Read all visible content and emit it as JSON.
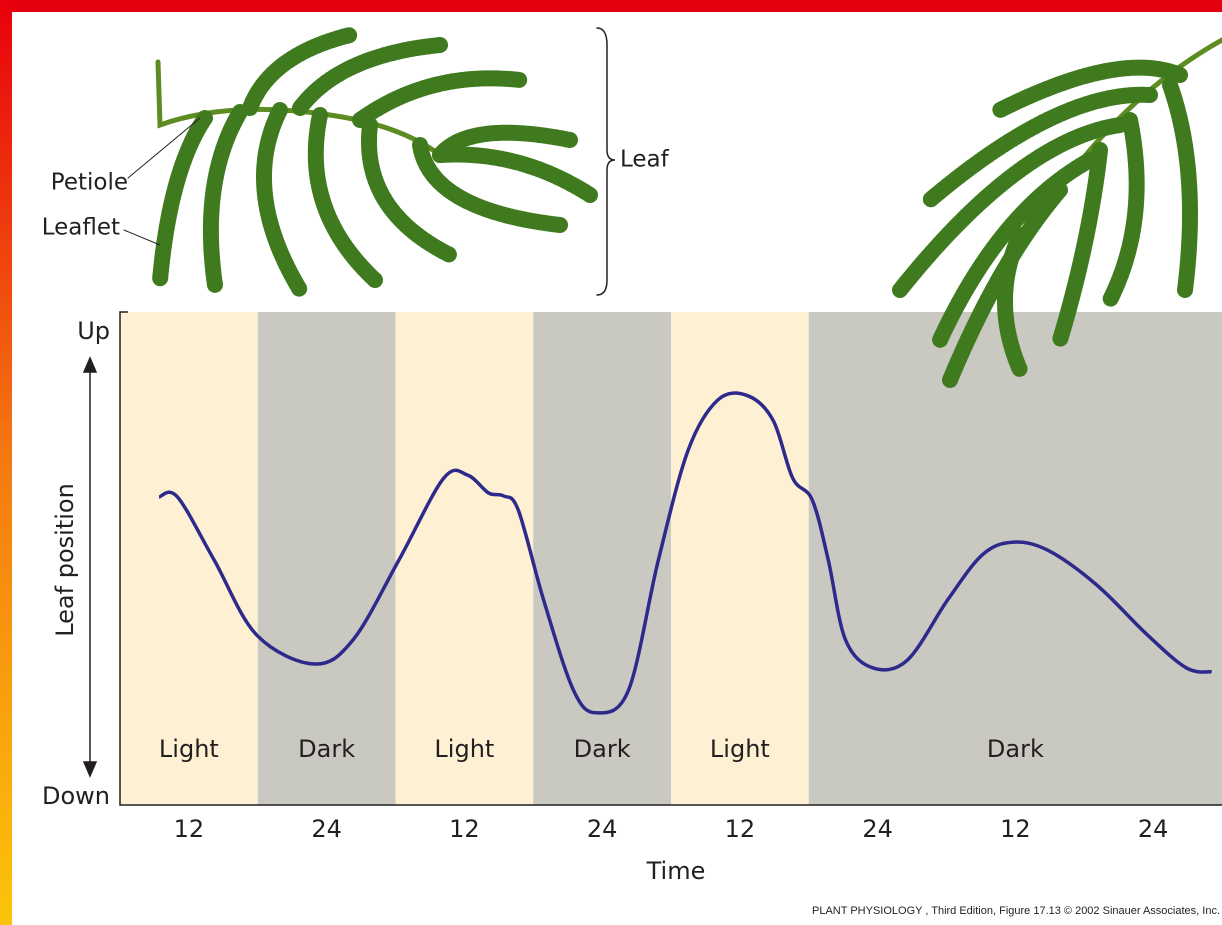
{
  "chart_data": {
    "type": "line",
    "y_label": "Leaf position",
    "x_label": "Time",
    "color": "#2e2a8c",
    "xlim": [
      6,
      102
    ],
    "xticks": [
      {
        "value": 12,
        "label": "12"
      },
      {
        "value": 24,
        "label": "24"
      },
      {
        "value": 36,
        "label": "12"
      },
      {
        "value": 48,
        "label": "24"
      },
      {
        "value": 60,
        "label": "12"
      },
      {
        "value": 72,
        "label": "24"
      },
      {
        "value": 84,
        "label": "12"
      },
      {
        "value": 96,
        "label": "24"
      }
    ],
    "ylim": [
      0,
      100
    ],
    "yticks": [
      {
        "value": 0,
        "label": "Down"
      },
      {
        "value": 100,
        "label": "Up"
      }
    ],
    "periods": [
      {
        "label": "Light",
        "start": 6,
        "end": 18,
        "color": "#fdf0d3"
      },
      {
        "label": "Dark",
        "start": 18,
        "end": 30,
        "color": "#c9c9c1"
      },
      {
        "label": "Light",
        "start": 30,
        "end": 42,
        "color": "#fdf0d3"
      },
      {
        "label": "Dark",
        "start": 42,
        "end": 54,
        "color": "#c9c9c1"
      },
      {
        "label": "Light",
        "start": 54,
        "end": 66,
        "color": "#fdf0d3"
      },
      {
        "label": "Dark",
        "start": 66,
        "end": 102,
        "color": "#c9c9c1"
      }
    ],
    "x": [
      9.4,
      11,
      14.2,
      17.9,
      22.9,
      26.3,
      30.3,
      34.2,
      36.3,
      38.1,
      39.4,
      40.7,
      42.9,
      45.5,
      47.5,
      50.3,
      52.9,
      55.5,
      58.1,
      60.7,
      62.9,
      64.6,
      66.3,
      67.7,
      69.2,
      71.6,
      74.6,
      78.1,
      81.1,
      83.7,
      86.8,
      91.1,
      95.5,
      98.9,
      101.1
    ],
    "values": [
      62.5,
      62.5,
      49.7,
      34.5,
      28.6,
      33.5,
      49.7,
      66.3,
      66.9,
      63.3,
      62.7,
      59.8,
      41.6,
      23.3,
      18.7,
      23.3,
      49.7,
      72,
      82.2,
      83,
      78,
      66.3,
      61.9,
      49.7,
      33.5,
      27.8,
      29.4,
      41.6,
      50.7,
      53.3,
      51.7,
      44.6,
      34.5,
      27.8,
      27
    ],
    "annotations": {
      "petiole": "Petiole",
      "leaflet": "Leaflet",
      "leaf": "Leaf"
    },
    "source": "PLANT PHYSIOLOGY , Third Edition, Figure 17.13  © 2002 Sinauer Associates, Inc."
  }
}
